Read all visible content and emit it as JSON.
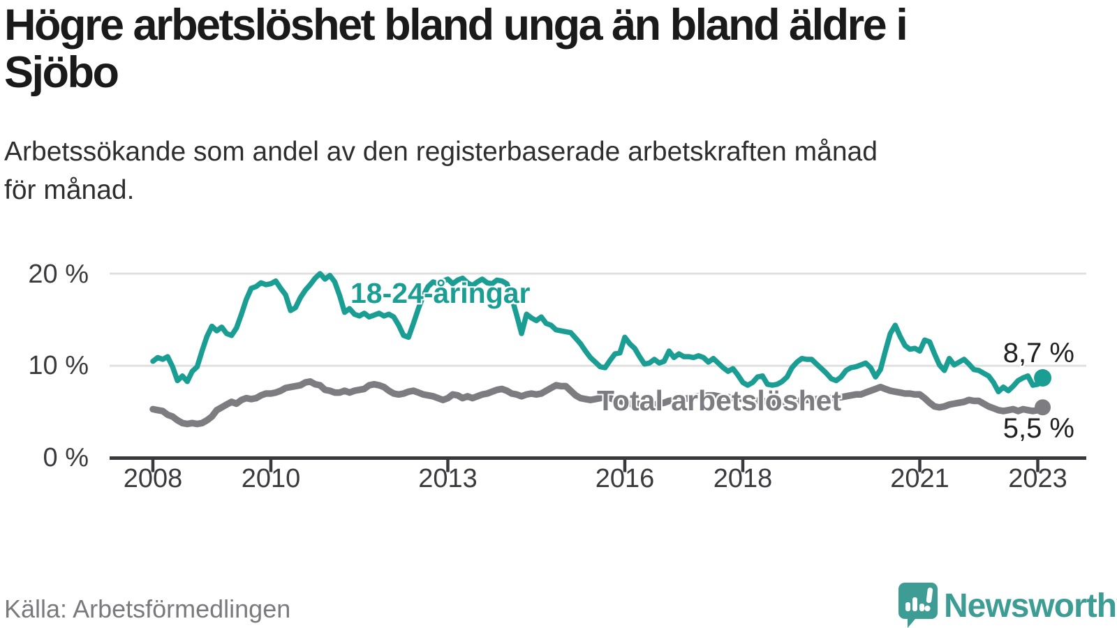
{
  "header": {
    "title_lines": [
      "Högre arbetslöshet bland unga än bland äldre i",
      "Sjöbo"
    ],
    "subtitle_lines": [
      "Arbetssökande som andel av den registerbaserade arbetskraften månad",
      "för månad."
    ]
  },
  "chart_data": {
    "type": "line",
    "title": "Högre arbetslöshet bland unga än bland äldre i Sjöbo",
    "subtitle": "Arbetssökande som andel av den registerbaserade arbetskraften månad för månad.",
    "x_start_year": 2008,
    "x_step_months": 1,
    "x_end": "2023-02",
    "x_tick_years": [
      2008,
      2010,
      2013,
      2016,
      2018,
      2021,
      2023
    ],
    "y_ticks": [
      0,
      10,
      20
    ],
    "y_tick_labels": [
      "0 %",
      "10 %",
      "20 %"
    ],
    "ylim": [
      0,
      21.5
    ],
    "unit": "%",
    "grid": "horizontal",
    "legend_position": "inline-labels",
    "series": [
      {
        "name": "18-24-åringar",
        "color": "#1a9e94",
        "end_value": 8.7,
        "end_label": "8,7 %",
        "values": [
          10.5,
          10.9,
          10.7,
          11.0,
          9.9,
          8.4,
          8.9,
          8.3,
          9.4,
          9.9,
          11.6,
          13.2,
          14.3,
          13.8,
          14.2,
          13.5,
          13.3,
          14.1,
          15.6,
          17.2,
          18.4,
          18.6,
          19.0,
          18.8,
          18.9,
          19.2,
          18.4,
          17.7,
          16.0,
          16.3,
          17.4,
          18.2,
          18.8,
          19.5,
          20.0,
          19.4,
          19.8,
          19.1,
          17.6,
          15.8,
          16.2,
          15.6,
          15.4,
          15.7,
          15.3,
          15.5,
          15.7,
          15.4,
          15.6,
          15.3,
          14.4,
          13.3,
          13.1,
          14.6,
          16.2,
          17.6,
          18.6,
          19.1,
          18.9,
          19.2,
          19.4,
          18.9,
          19.3,
          19.5,
          19.0,
          18.7,
          19.1,
          19.4,
          19.0,
          18.9,
          19.3,
          19.2,
          18.9,
          17.4,
          15.5,
          13.5,
          15.6,
          15.2,
          14.9,
          15.3,
          14.6,
          14.4,
          13.9,
          13.8,
          13.7,
          13.6,
          13.0,
          12.4,
          11.6,
          10.9,
          10.4,
          9.9,
          9.8,
          10.6,
          11.3,
          11.4,
          13.1,
          12.4,
          11.9,
          11.0,
          10.2,
          10.3,
          10.7,
          10.3,
          10.5,
          11.6,
          10.9,
          11.3,
          11.0,
          11.0,
          10.9,
          11.1,
          10.9,
          10.4,
          10.8,
          10.3,
          9.8,
          9.4,
          9.7,
          9.0,
          8.2,
          7.9,
          8.2,
          8.8,
          8.9,
          8.0,
          7.9,
          8.0,
          8.3,
          8.8,
          9.8,
          10.4,
          10.8,
          10.7,
          10.7,
          10.2,
          9.7,
          9.2,
          8.6,
          8.4,
          8.8,
          9.5,
          9.8,
          9.9,
          10.1,
          10.3,
          9.8,
          8.8,
          9.6,
          11.6,
          13.5,
          14.4,
          13.2,
          12.2,
          11.8,
          11.9,
          11.6,
          12.8,
          12.6,
          11.3,
          10.1,
          9.5,
          10.8,
          10.1,
          10.4,
          10.7,
          10.2,
          9.6,
          9.5,
          9.2,
          8.9,
          8.2,
          7.2,
          7.7,
          7.3,
          7.8,
          8.4,
          8.7,
          8.9,
          7.9,
          8.0,
          8.7
        ]
      },
      {
        "name": "Total arbetslöshet",
        "color": "#7d7d81",
        "end_value": 5.5,
        "end_label": "5,5 %",
        "values": [
          5.3,
          5.2,
          5.1,
          4.7,
          4.5,
          4.1,
          3.8,
          3.7,
          3.8,
          3.7,
          3.8,
          4.1,
          4.5,
          5.2,
          5.5,
          5.8,
          6.1,
          5.9,
          6.3,
          6.5,
          6.4,
          6.5,
          6.8,
          7.0,
          7.0,
          7.1,
          7.3,
          7.6,
          7.7,
          7.8,
          7.9,
          8.2,
          8.3,
          8.0,
          7.9,
          7.4,
          7.3,
          7.1,
          7.1,
          7.3,
          7.1,
          7.3,
          7.4,
          7.5,
          7.9,
          8.0,
          7.9,
          7.7,
          7.3,
          7.0,
          6.9,
          7.0,
          7.2,
          7.3,
          7.1,
          6.9,
          6.8,
          6.7,
          6.5,
          6.3,
          6.5,
          6.9,
          6.8,
          6.5,
          6.7,
          6.5,
          6.7,
          6.9,
          7.0,
          7.2,
          7.4,
          7.5,
          7.3,
          7.0,
          6.9,
          6.7,
          6.9,
          7.0,
          6.9,
          7.0,
          7.3,
          7.6,
          7.9,
          7.8,
          7.8,
          7.3,
          6.8,
          6.5,
          6.4,
          6.3,
          6.4,
          6.5,
          6.7,
          6.5,
          6.3,
          6.2,
          6.0,
          5.9,
          5.8,
          5.9,
          5.9,
          6.0,
          5.8,
          5.9,
          6.0,
          6.2,
          6.3,
          6.3,
          6.4,
          6.5,
          6.6,
          6.7,
          6.7,
          6.8,
          6.8,
          6.7,
          6.6,
          6.6,
          6.5,
          6.5,
          6.4,
          6.4,
          6.3,
          6.2,
          6.2,
          6.1,
          6.0,
          6.0,
          6.1,
          6.1,
          6.2,
          6.2,
          6.2,
          6.3,
          6.3,
          6.4,
          6.4,
          6.5,
          6.5,
          6.6,
          6.6,
          6.7,
          6.8,
          6.9,
          6.9,
          7.1,
          7.3,
          7.5,
          7.7,
          7.5,
          7.3,
          7.2,
          7.1,
          7.0,
          7.0,
          6.9,
          6.9,
          6.5,
          6.0,
          5.6,
          5.5,
          5.6,
          5.8,
          5.9,
          6.0,
          6.1,
          6.3,
          6.2,
          6.2,
          5.9,
          5.6,
          5.4,
          5.2,
          5.1,
          5.2,
          5.3,
          5.1,
          5.3,
          5.2,
          5.1,
          5.2,
          5.5
        ]
      }
    ]
  },
  "footer": {
    "source": "Källa: Arbetsförmedlingen",
    "brand": "Newsworthy"
  },
  "colors": {
    "accent_teal": "#1a9e94",
    "series_gray": "#7d7d81",
    "axis": "#39393d",
    "gridline": "#e0e0e0",
    "title_text": "#1a1a1a",
    "body_text": "#2e2e2e",
    "muted_text": "#7a7a7e",
    "value_label_text": "#1f1f1f",
    "brand_teal": "#3d9c94",
    "background": "#ffffff"
  }
}
